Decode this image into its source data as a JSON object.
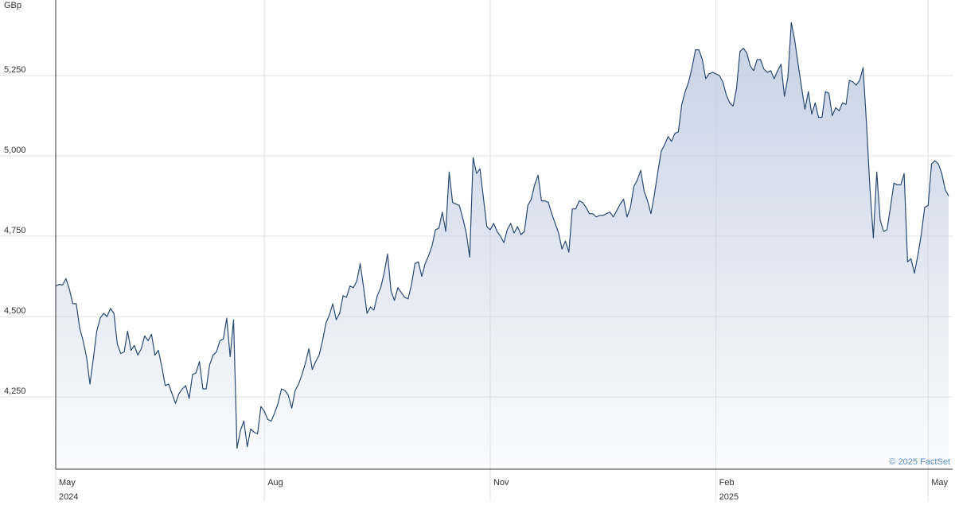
{
  "chart_data": {
    "type": "area",
    "unit_label": "GBp",
    "credit": "© 2025 FactSet",
    "color": "#2a4a73",
    "fill_color": "#c3cfe3",
    "grid": true,
    "ylim": [
      4025,
      5485
    ],
    "yticks": [
      {
        "value": 4250,
        "label": "4,250"
      },
      {
        "value": 4500,
        "label": "4,500"
      },
      {
        "value": 4750,
        "label": "4,750"
      },
      {
        "value": 5000,
        "label": "5,000"
      },
      {
        "value": 5250,
        "label": "5,250"
      }
    ],
    "categories": [
      "May",
      null,
      null,
      null,
      null,
      null,
      null,
      null,
      null,
      null,
      null,
      null,
      null,
      null,
      null,
      null,
      null,
      null,
      null,
      null,
      null,
      null,
      null,
      null,
      null,
      null,
      null,
      null,
      null,
      null,
      null,
      null,
      null,
      null,
      null,
      null,
      null,
      null,
      null,
      null,
      null,
      null,
      null,
      null,
      null,
      null,
      null,
      null,
      null,
      null,
      null,
      null,
      null,
      null,
      null,
      null,
      null,
      null,
      null,
      null,
      null,
      "Aug",
      null,
      null,
      null,
      null,
      null,
      null,
      null,
      null,
      null,
      null,
      null,
      null,
      null,
      null,
      null,
      null,
      null,
      null,
      null,
      null,
      null,
      null,
      null,
      null,
      null,
      null,
      null,
      null,
      null,
      null,
      null,
      null,
      null,
      null,
      null,
      null,
      null,
      null,
      null,
      null,
      null,
      null,
      null,
      null,
      null,
      null,
      null,
      null,
      null,
      null,
      null,
      null,
      null,
      null,
      null,
      null,
      null,
      null,
      null,
      null,
      null,
      null,
      null,
      null,
      null,
      "Nov",
      null,
      null,
      null,
      null,
      null,
      null,
      null,
      null,
      null,
      null,
      null,
      null,
      null,
      null,
      null,
      null,
      null,
      null,
      null,
      null,
      null,
      null,
      null,
      null,
      null,
      null,
      null,
      null,
      null,
      null,
      null,
      null,
      null,
      null,
      null,
      null,
      null,
      null,
      null,
      null,
      null,
      null,
      null,
      null,
      null,
      null,
      null,
      null,
      null,
      null,
      null,
      null,
      null,
      null,
      null,
      null,
      null,
      null,
      null,
      null,
      null,
      null,
      null,
      null,
      null,
      "Feb",
      null,
      null,
      null,
      null,
      null,
      null,
      null,
      null,
      null,
      null,
      null,
      null,
      null,
      null,
      null,
      null,
      null,
      null,
      null,
      null,
      null,
      null,
      null,
      null,
      null,
      null,
      null,
      null,
      null,
      null,
      null,
      null,
      null,
      null,
      null,
      null,
      null,
      null,
      null,
      null,
      null,
      null,
      null,
      null,
      null,
      null,
      null,
      null,
      null,
      null,
      null,
      null,
      null,
      null,
      null,
      null,
      null,
      null,
      null,
      null,
      null,
      "May",
      null,
      null,
      null,
      null,
      null,
      null
    ],
    "category_years": [
      "2024",
      null,
      null,
      null,
      null,
      null,
      null,
      null,
      null,
      null,
      null,
      null,
      null,
      null,
      null,
      null,
      null,
      null,
      null,
      null,
      null,
      null,
      null,
      null,
      null,
      null,
      null,
      null,
      null,
      null,
      null,
      null,
      null,
      null,
      null,
      null,
      null,
      null,
      null,
      null,
      null,
      null,
      null,
      null,
      null,
      null,
      null,
      null,
      null,
      null,
      null,
      null,
      null,
      null,
      null,
      null,
      null,
      null,
      null,
      null,
      null,
      null,
      null,
      null,
      null,
      null,
      null,
      null,
      null,
      null,
      null,
      null,
      null,
      null,
      null,
      null,
      null,
      null,
      null,
      null,
      null,
      null,
      null,
      null,
      null,
      null,
      null,
      null,
      null,
      null,
      null,
      null,
      null,
      null,
      null,
      null,
      null,
      null,
      null,
      null,
      null,
      null,
      null,
      null,
      null,
      null,
      null,
      null,
      null,
      null,
      null,
      null,
      null,
      null,
      null,
      null,
      null,
      null,
      null,
      null,
      null,
      null,
      null,
      null,
      null,
      null,
      null,
      null,
      null,
      null,
      null,
      null,
      null,
      null,
      null,
      null,
      null,
      null,
      null,
      null,
      null,
      null,
      null,
      null,
      null,
      null,
      null,
      null,
      null,
      null,
      null,
      null,
      null,
      null,
      null,
      null,
      null,
      null,
      null,
      null,
      null,
      null,
      null,
      null,
      null,
      null,
      null,
      null,
      null,
      null,
      null,
      null,
      null,
      null,
      null,
      null,
      null,
      null,
      null,
      null,
      null,
      null,
      null,
      null,
      null,
      null,
      null,
      null,
      null,
      null,
      null,
      null,
      null,
      "2025",
      null,
      null,
      null,
      null,
      null,
      null,
      null,
      null,
      null,
      null,
      null,
      null,
      null,
      null,
      null,
      null,
      null,
      null,
      null,
      null,
      null,
      null,
      null,
      null,
      null,
      null,
      null,
      null,
      null,
      null,
      null,
      null,
      null,
      null,
      null,
      null,
      null,
      null,
      null,
      null,
      null,
      null,
      null,
      null,
      null,
      null,
      null,
      null,
      null,
      null,
      null,
      null,
      null,
      null,
      null,
      null,
      null,
      null,
      null,
      null,
      null,
      null,
      null,
      null,
      null,
      null,
      null,
      null
    ],
    "values": [
      4595,
      4600,
      4598,
      4618,
      4585,
      4540,
      4540,
      4465,
      4425,
      4375,
      4290,
      4370,
      4455,
      4495,
      4510,
      4500,
      4525,
      4510,
      4415,
      4385,
      4390,
      4455,
      4395,
      4410,
      4380,
      4400,
      4440,
      4425,
      4445,
      4380,
      4395,
      4345,
      4285,
      4290,
      4260,
      4230,
      4260,
      4275,
      4285,
      4245,
      4320,
      4325,
      4360,
      4275,
      4275,
      4350,
      4380,
      4390,
      4425,
      4430,
      4495,
      4375,
      4490,
      4090,
      4145,
      4175,
      4095,
      4150,
      4140,
      4135,
      4220,
      4205,
      4180,
      4175,
      4200,
      4230,
      4275,
      4270,
      4255,
      4215,
      4270,
      4290,
      4320,
      4355,
      4400,
      4335,
      4360,
      4380,
      4425,
      4480,
      4505,
      4540,
      4490,
      4510,
      4565,
      4560,
      4595,
      4590,
      4610,
      4665,
      4590,
      4510,
      4530,
      4520,
      4565,
      4590,
      4635,
      4695,
      4580,
      4550,
      4590,
      4575,
      4560,
      4555,
      4600,
      4665,
      4670,
      4625,
      4665,
      4690,
      4720,
      4770,
      4775,
      4825,
      4765,
      4950,
      4855,
      4850,
      4845,
      4805,
      4760,
      4685,
      4995,
      4945,
      4960,
      4870,
      4780,
      4770,
      4790,
      4765,
      4750,
      4730,
      4770,
      4790,
      4760,
      4780,
      4755,
      4765,
      4845,
      4865,
      4910,
      4940,
      4860,
      4860,
      4855,
      4820,
      4790,
      4760,
      4710,
      4735,
      4700,
      4835,
      4835,
      4860,
      4855,
      4840,
      4820,
      4820,
      4810,
      4815,
      4815,
      4820,
      4825,
      4810,
      4830,
      4850,
      4865,
      4810,
      4840,
      4905,
      4925,
      4955,
      4890,
      4860,
      4820,
      4880,
      4950,
      5015,
      5035,
      5060,
      5045,
      5070,
      5075,
      5160,
      5200,
      5230,
      5275,
      5330,
      5330,
      5300,
      5240,
      5255,
      5260,
      5255,
      5250,
      5230,
      5190,
      5165,
      5155,
      5210,
      5325,
      5335,
      5320,
      5280,
      5265,
      5300,
      5300,
      5270,
      5260,
      5265,
      5240,
      5265,
      5285,
      5185,
      5245,
      5415,
      5360,
      5285,
      5215,
      5145,
      5200,
      5130,
      5165,
      5120,
      5120,
      5200,
      5195,
      5125,
      5150,
      5140,
      5165,
      5160,
      5235,
      5230,
      5220,
      5235,
      5275,
      5100,
      4900,
      4745,
      4950,
      4800,
      4765,
      4770,
      4840,
      4915,
      4910,
      4910,
      4945,
      4670,
      4680,
      4635,
      4690,
      4755,
      4840,
      4845,
      4975,
      4985,
      4975,
      4945,
      4895,
      4875
    ]
  }
}
